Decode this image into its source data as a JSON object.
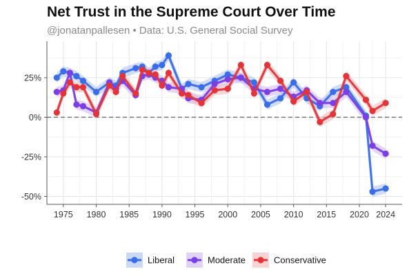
{
  "chart_data": {
    "type": "line",
    "title": "Net Trust in the Supreme Court Over Time",
    "subtitle": "@jonatanpallesen • Data: U.S. General Social Survey",
    "xlabel": "",
    "ylabel": "",
    "xlim": [
      1972.5,
      2026.5
    ],
    "ylim": [
      -55,
      48
    ],
    "x_ticks": [
      1975,
      1980,
      1985,
      1990,
      1995,
      2000,
      2005,
      2010,
      2015,
      2020,
      2024
    ],
    "y_ticks": [
      {
        "value": 25,
        "label": "25%"
      },
      {
        "value": 0,
        "label": "0%"
      },
      {
        "value": -25,
        "label": "-25%"
      },
      {
        "value": -50,
        "label": "-50%"
      }
    ],
    "reference_line": {
      "value": 0,
      "style": "dashed"
    },
    "grid": true,
    "legend_position": "bottom",
    "series": [
      {
        "name": "Liberal",
        "color": "#3b6de8",
        "band_color": "#a9bff5",
        "points": [
          [
            1974,
            25
          ],
          [
            1975,
            29
          ],
          [
            1976,
            28
          ],
          [
            1977,
            26
          ],
          [
            1978,
            23
          ],
          [
            1980,
            16
          ],
          [
            1982,
            22
          ],
          [
            1983,
            20
          ],
          [
            1984,
            28
          ],
          [
            1986,
            31
          ],
          [
            1987,
            32
          ],
          [
            1988,
            28
          ],
          [
            1989,
            32
          ],
          [
            1990,
            33
          ],
          [
            1991,
            39
          ],
          [
            1993,
            18
          ],
          [
            1994,
            21
          ],
          [
            1996,
            19
          ],
          [
            1998,
            23
          ],
          [
            2000,
            27
          ],
          [
            2002,
            25
          ],
          [
            2004,
            22
          ],
          [
            2006,
            8
          ],
          [
            2008,
            12
          ],
          [
            2010,
            22
          ],
          [
            2012,
            12
          ],
          [
            2014,
            7
          ],
          [
            2016,
            16
          ],
          [
            2018,
            19
          ],
          [
            2021,
            1
          ],
          [
            2022,
            -47
          ],
          [
            2024,
            -45
          ]
        ]
      },
      {
        "name": "Moderate",
        "color": "#7b3fe4",
        "band_color": "#cdb6f4",
        "points": [
          [
            1974,
            16
          ],
          [
            1975,
            17
          ],
          [
            1976,
            28
          ],
          [
            1977,
            8
          ],
          [
            1978,
            7
          ],
          [
            1980,
            3
          ],
          [
            1982,
            22
          ],
          [
            1983,
            18
          ],
          [
            1984,
            23
          ],
          [
            1986,
            14
          ],
          [
            1987,
            26
          ],
          [
            1988,
            27
          ],
          [
            1989,
            25
          ],
          [
            1990,
            23
          ],
          [
            1991,
            19
          ],
          [
            1993,
            18
          ],
          [
            1994,
            12
          ],
          [
            1996,
            11
          ],
          [
            1998,
            21
          ],
          [
            2000,
            24
          ],
          [
            2002,
            25
          ],
          [
            2004,
            18
          ],
          [
            2006,
            16
          ],
          [
            2008,
            18
          ],
          [
            2010,
            13
          ],
          [
            2012,
            17
          ],
          [
            2014,
            9
          ],
          [
            2016,
            9
          ],
          [
            2018,
            16
          ],
          [
            2021,
            0
          ],
          [
            2022,
            -18
          ],
          [
            2024,
            -23
          ]
        ]
      },
      {
        "name": "Conservative",
        "color": "#e3343a",
        "band_color": "#f4b6b8",
        "points": [
          [
            1974,
            3
          ],
          [
            1975,
            15
          ],
          [
            1976,
            22
          ],
          [
            1977,
            19
          ],
          [
            1978,
            19
          ],
          [
            1980,
            2
          ],
          [
            1982,
            20
          ],
          [
            1983,
            16
          ],
          [
            1984,
            26
          ],
          [
            1986,
            15
          ],
          [
            1987,
            30
          ],
          [
            1988,
            28
          ],
          [
            1989,
            27
          ],
          [
            1990,
            20
          ],
          [
            1991,
            28
          ],
          [
            1993,
            15
          ],
          [
            1994,
            14
          ],
          [
            1996,
            9
          ],
          [
            1998,
            17
          ],
          [
            2000,
            18
          ],
          [
            2002,
            33
          ],
          [
            2004,
            15
          ],
          [
            2006,
            33
          ],
          [
            2008,
            23
          ],
          [
            2010,
            10
          ],
          [
            2012,
            16
          ],
          [
            2014,
            -3
          ],
          [
            2016,
            2
          ],
          [
            2018,
            26
          ],
          [
            2021,
            11
          ],
          [
            2022,
            4
          ],
          [
            2024,
            9
          ]
        ]
      }
    ]
  }
}
